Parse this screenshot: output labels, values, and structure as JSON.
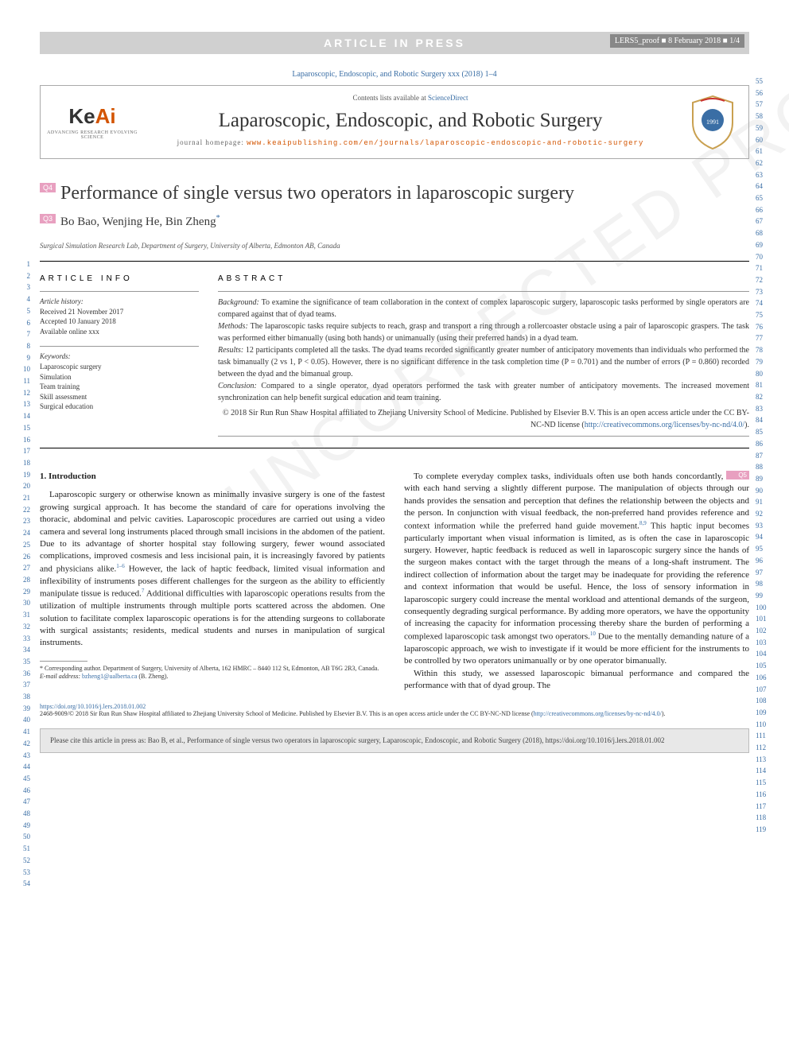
{
  "header": {
    "bar_title": "ARTICLE IN PRESS",
    "bar_right": "LERS5_proof ■ 8 February 2018 ■ 1/4",
    "citation": "Laparoscopic, Endoscopic, and Robotic Surgery xxx (2018) 1–4"
  },
  "journal_box": {
    "keai_main": "Ke",
    "keai_accent": "Ai",
    "keai_sub": "ADVANCING RESEARCH\nEVOLVING SCIENCE",
    "contents_pre": "Contents lists available at ",
    "contents_link": "ScienceDirect",
    "journal_name": "Laparoscopic, Endoscopic, and Robotic Surgery",
    "homepage_pre": "journal homepage: ",
    "homepage_link": "www.keaipublishing.com/en/journals/laparoscopic-endoscopic-and-robotic-surgery"
  },
  "article": {
    "q4": "Q4",
    "q3": "Q3",
    "q5": "Q5",
    "title": "Performance of single versus two operators in laparoscopic surgery",
    "authors": "Bo Bao, Wenjing He, Bin Zheng",
    "corr_mark": "*",
    "affiliation": "Surgical Simulation Research Lab, Department of Surgery, University of Alberta, Edmonton AB, Canada"
  },
  "info": {
    "label": "ARTICLE INFO",
    "history_label": "Article history:",
    "received": "Received 21 November 2017",
    "accepted": "Accepted 10 January 2018",
    "online": "Available online xxx",
    "keywords_label": "Keywords:",
    "keywords": [
      "Laparoscopic surgery",
      "Simulation",
      "Team training",
      "Skill assessment",
      "Surgical education"
    ]
  },
  "abstract": {
    "label": "ABSTRACT",
    "background_lbl": "Background:",
    "background": " To examine the significance of team collaboration in the context of complex laparoscopic surgery, laparoscopic tasks performed by single operators are compared against that of dyad teams.",
    "methods_lbl": "Methods:",
    "methods": " The laparoscopic tasks require subjects to reach, grasp and transport a ring through a rollercoaster obstacle using a pair of laparoscopic graspers. The task was performed either bimanually (using both hands) or unimanually (using their preferred hands) in a dyad team.",
    "results_lbl": "Results:",
    "results": " 12 participants completed all the tasks. The dyad teams recorded significantly greater number of anticipatory movements than individuals who performed the task bimanually (2 vs 1, P < 0.05). However, there is no significant difference in the task completion time (P = 0.701) and the number of errors (P = 0.860) recorded between the dyad and the bimanual group.",
    "conclusion_lbl": "Conclusion:",
    "conclusion": " Compared to a single operator, dyad operators performed the task with greater number of anticipatory movements. The increased movement synchronization can help benefit surgical education and team training.",
    "copyright": "© 2018 Sir Run Run Shaw Hospital affiliated to Zhejiang University School of Medicine. Published by Elsevier B.V. This is an open access article under the CC BY-NC-ND license (",
    "license_link": "http://creativecommons.org/licenses/by-nc-nd/4.0/",
    "copyright_end": ")."
  },
  "body": {
    "intro_heading": "1. Introduction",
    "col1_p1": "Laparoscopic surgery or otherwise known as minimally invasive surgery is one of the fastest growing surgical approach. It has become the standard of care for operations involving the thoracic, abdominal and pelvic cavities. Laparoscopic procedures are carried out using a video camera and several long instruments placed through small incisions in the abdomen of the patient. Due to its advantage of shorter hospital stay following surgery, fewer wound associated complications, improved cosmesis and less incisional pain, it is increasingly favored by patients and physicians alike.",
    "col1_ref1": "1–6",
    "col1_p1b": " However, the lack of haptic feedback, limited visual information and inflexibility of instruments poses different challenges for the surgeon as the ability to efficiently manipulate tissue is reduced.",
    "col1_ref2": "7",
    "col1_p1c": " Additional difficulties with laparoscopic operations results from the utilization of multiple instruments through multiple ports scattered across the abdomen. One solution to facilitate complex laparoscopic operations is for the attending surgeons to collaborate with surgical assistants; residents, medical students and nurses in manipulation of surgical instruments.",
    "col2_p1": "To complete everyday complex tasks, individuals often use both hands concordantly, with each hand serving a slightly different purpose. The manipulation of objects through our hands provides the sensation and perception that defines the relationship between the objects and the person. In conjunction with visual feedback, the non-preferred hand provides reference and context information while the preferred hand guide movement.",
    "col2_ref1": "8,9",
    "col2_p1b": " This haptic input becomes particularly important when visual information is limited, as is often the case in laparoscopic surgery. However, haptic feedback is reduced as well in laparoscopic surgery since the hands of the surgeon makes contact with the target through the means of a long-shaft instrument. The indirect collection of information about the target may be inadequate for providing the reference and context information that would be useful. Hence, the loss of sensory information in laparoscopic surgery could increase the mental workload and attentional demands of the surgeon, consequently degrading surgical performance. By adding more operators, we have the opportunity of increasing the capacity for information processing thereby share the burden of performing a complexed laparoscopic task amongst two operators.",
    "col2_ref2": "10",
    "col2_p1c": " Due to the mentally demanding nature of a laparoscopic approach, we wish to investigate if it would be more efficient for the instruments to be controlled by two operators unimanually or by one operator bimanually.",
    "col2_p2": "Within this study, we assessed laparoscopic bimanual performance and compared the performance with that of dyad group. The"
  },
  "footnote": {
    "corr": "* Corresponding author. Department of Surgery, University of Alberta, 162 HMRC – 8440 112 St, Edmonton, AB T6G 2R3, Canada.",
    "email_lbl": "E-mail address:",
    "email": "bzheng1@ualberta.ca",
    "email_who": " (B. Zheng)."
  },
  "doi": {
    "link": "https://doi.org/10.1016/j.lers.2018.01.002",
    "issn": "2468-9009/© 2018 Sir Run Run Shaw Hospital affiliated to Zhejiang University School of Medicine. Published by Elsevier B.V. This is an open access article under the CC BY-NC-ND license (",
    "issn_link": "http://creativecommons.org/licenses/by-nc-nd/4.0/",
    "issn_end": ")."
  },
  "cite_box": "Please cite this article in press as: Bao B, et al., Performance of single versus two operators in laparoscopic surgery, Laparoscopic, Endoscopic, and Robotic Surgery (2018), https://doi.org/10.1016/j.lers.2018.01.002",
  "watermark": "UNCORRECTED PROOF",
  "colors": {
    "accent_blue": "#3a6ea5",
    "accent_orange": "#d35400",
    "badge_pink": "#e8a0c0",
    "bar_gray": "#d0d0d0"
  },
  "line_numbers": {
    "left_start": 1,
    "left_end": 54,
    "right_start": 55,
    "right_end": 119
  }
}
